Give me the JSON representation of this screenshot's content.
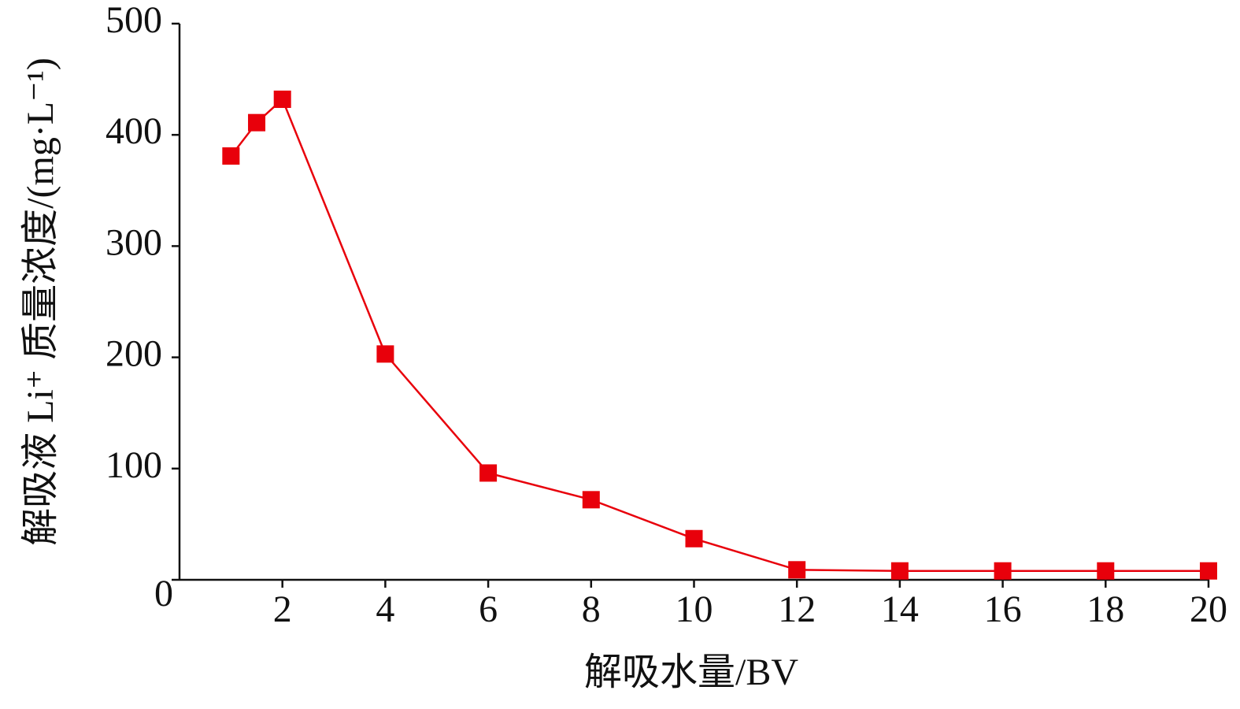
{
  "chart_data": {
    "type": "line",
    "x_label": "解吸水量/BV",
    "y_label": "解吸液 Li⁺ 质量浓度/(mg·L⁻¹)",
    "x": [
      1,
      1.5,
      2,
      4,
      6,
      8,
      10,
      12,
      14,
      16,
      18,
      20
    ],
    "series": [
      {
        "color": "#e8000b",
        "values": [
          381,
          411,
          432,
          203,
          96,
          72,
          37,
          9,
          8,
          8,
          8,
          8
        ]
      }
    ],
    "xlim": [
      0,
      20
    ],
    "xticks": [
      2,
      4,
      6,
      8,
      10,
      12,
      14,
      16,
      18,
      20
    ],
    "ylim": [
      0,
      500
    ],
    "yticks": [
      0,
      100,
      200,
      300,
      400,
      500
    ],
    "grid": false
  }
}
